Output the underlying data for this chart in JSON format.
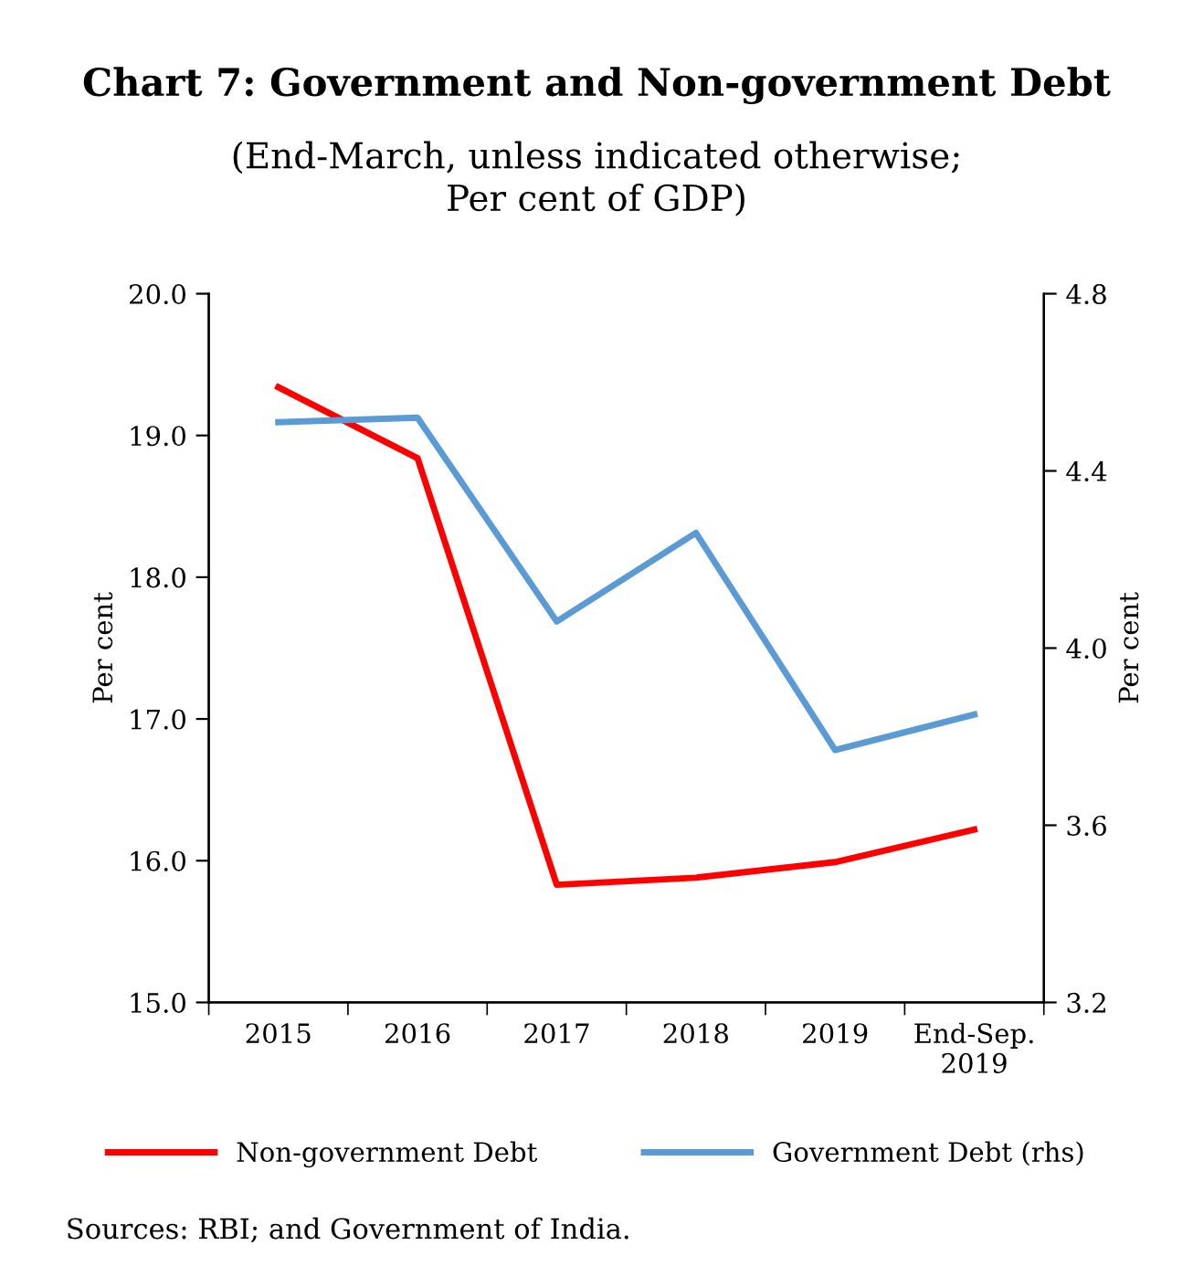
{
  "chart_data": {
    "type": "line",
    "title": "Chart 7: Government and Non-government Debt",
    "subtitle": "(End-March, unless indicated otherwise;\nPer cent of GDP)",
    "ylabel": "Per cent",
    "y2label": "Per cent",
    "categories": [
      "2015",
      "2016",
      "2017",
      "2018",
      "2019",
      "End-Sep.\n2019"
    ],
    "series": [
      {
        "name": "Non-government Debt",
        "color": "#ff0000",
        "values": [
          19.34,
          18.84,
          15.83,
          15.88,
          15.99,
          16.22
        ]
      },
      {
        "name": "Government Debt (rhs)",
        "color": "#5b9bd5",
        "axis": "y2",
        "values": [
          4.51,
          4.52,
          4.06,
          4.26,
          3.77,
          3.85
        ]
      }
    ],
    "ylim": [
      15.0,
      20.0
    ],
    "yticks": [
      {
        "value": 15,
        "label": "15.0"
      },
      {
        "value": 16,
        "label": "16.0"
      },
      {
        "value": 17,
        "label": "17.0"
      },
      {
        "value": 18,
        "label": "18.0"
      },
      {
        "value": 19,
        "label": "19.0"
      },
      {
        "value": 20,
        "label": "20.0"
      }
    ],
    "y2lim": [
      3.2,
      4.8
    ],
    "y2ticks": [
      {
        "value": 3.2,
        "label": "3.2"
      },
      {
        "value": 3.6,
        "label": "3.6"
      },
      {
        "value": 4.0,
        "label": "4.0"
      },
      {
        "value": 4.4,
        "label": "4.4"
      },
      {
        "value": 4.8,
        "label": "4.8"
      }
    ],
    "grid": false,
    "legend": "bottom",
    "annotations": [
      "Sources: RBI; and Government of India."
    ]
  }
}
